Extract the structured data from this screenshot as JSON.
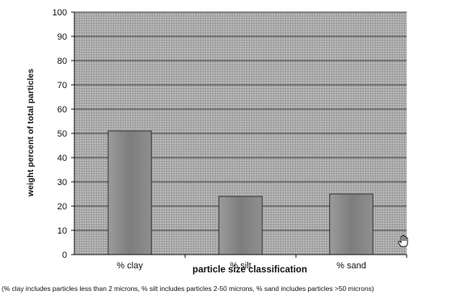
{
  "chart_data": {
    "type": "bar",
    "categories": [
      "% clay",
      "% silt",
      "% sand"
    ],
    "values": [
      51,
      24,
      25
    ],
    "xlabel": "particle size classification",
    "ylabel": "weight percent of total particles",
    "ylim": [
      0,
      100
    ],
    "yticks": [
      0,
      10,
      20,
      30,
      40,
      50,
      60,
      70,
      80,
      90,
      100
    ],
    "grid": true,
    "legend": "none",
    "colors": {
      "plot_background": "#a9a9a9",
      "bar_fill": "#8a8a8a",
      "gridline": "#3a3a3a"
    }
  },
  "footnote": "(% clay includes particles less than 2 microns, % silt includes particles 2-50 microns, % sand includes particles >50 microns)",
  "icons": {
    "cursor": "hand-cursor-icon"
  }
}
